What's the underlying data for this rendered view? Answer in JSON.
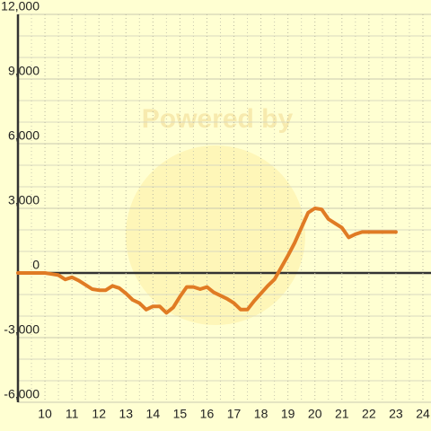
{
  "chart_data": {
    "type": "line",
    "watermark": "Powered by",
    "x": [
      9,
      10,
      10.25,
      10.5,
      10.75,
      11,
      11.25,
      11.5,
      11.75,
      12,
      12.25,
      12.5,
      12.75,
      13,
      13.25,
      13.5,
      13.75,
      14,
      14.25,
      14.5,
      14.75,
      15,
      15.25,
      15.5,
      15.75,
      16,
      16.25,
      16.5,
      16.75,
      17,
      17.25,
      17.5,
      17.75,
      18,
      18.25,
      18.5,
      18.75,
      19,
      19.25,
      19.5,
      19.75,
      20,
      20.25,
      20.5,
      20.75,
      21,
      21.25,
      21.5,
      21.75,
      22,
      23
    ],
    "values": [
      0,
      0,
      -50,
      -100,
      -300,
      -200,
      -350,
      -550,
      -750,
      -800,
      -800,
      -600,
      -700,
      -950,
      -1250,
      -1400,
      -1700,
      -1550,
      -1550,
      -1850,
      -1600,
      -1100,
      -650,
      -650,
      -750,
      -650,
      -900,
      -1050,
      -1200,
      -1400,
      -1700,
      -1700,
      -1300,
      -950,
      -600,
      -300,
      250,
      800,
      1400,
      2100,
      2800,
      3000,
      2950,
      2500,
      2300,
      2100,
      1650,
      1800,
      1900,
      1900,
      1900
    ],
    "color": "#e07b24",
    "xlim": [
      9,
      24.3
    ],
    "xticks": [
      10,
      11,
      12,
      13,
      14,
      15,
      16,
      17,
      18,
      19,
      20,
      21,
      22,
      23,
      24
    ],
    "xminor": [
      9.5,
      10.5,
      11.5,
      12.5,
      13.5,
      14.5,
      15.5,
      16.5,
      17.5,
      18.5,
      19.5,
      20.5,
      21.5,
      22.5,
      23.5
    ],
    "ylim": [
      -6000,
      12000
    ],
    "yticks": [
      {
        "value": -6000,
        "label": "-6,000"
      },
      {
        "value": -3000,
        "label": "-3,000"
      },
      0,
      {
        "value": 3000,
        "label": "3,000"
      },
      {
        "value": 6000,
        "label": "6,000"
      },
      {
        "value": 9000,
        "label": "9,000"
      },
      {
        "value": 12000,
        "label": "12,000"
      }
    ],
    "yminor": [
      -5000,
      -4000,
      -2000,
      -1000,
      1000,
      2000,
      4000,
      5000,
      7000,
      8000,
      10000,
      11000
    ],
    "grid": true
  }
}
